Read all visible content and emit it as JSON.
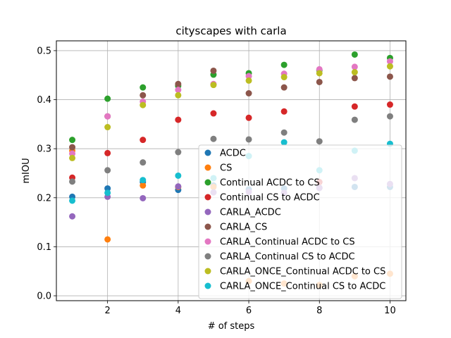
{
  "chart_data": {
    "type": "scatter",
    "title": "cityscapes with carla",
    "xlabel": "# of steps",
    "ylabel": "mIOU",
    "xlim": [
      0.55,
      10.45
    ],
    "ylim": [
      -0.01,
      0.52
    ],
    "xticks": [
      "2",
      "4",
      "6",
      "8",
      "10"
    ],
    "yticks": [
      "0.0",
      "0.1",
      "0.2",
      "0.3",
      "0.4",
      "0.5"
    ],
    "grid": true,
    "legend_position": "lower-right",
    "series": [
      {
        "name": "ACDC",
        "color": "#1f77b4",
        "x": [
          1,
          2,
          3,
          4,
          5,
          6,
          7,
          8,
          9,
          10
        ],
        "y": [
          0.202,
          0.219,
          0.232,
          0.216,
          0.225,
          0.217,
          0.219,
          0.22,
          0.222,
          0.222
        ]
      },
      {
        "name": "CS",
        "color": "#ff7f0e",
        "x": [
          1,
          2,
          3,
          4,
          5,
          6,
          7,
          8,
          9,
          10
        ],
        "y": [
          0.296,
          0.115,
          0.225,
          0.222,
          0.222,
          0.03,
          0.025,
          0.022,
          0.04,
          0.045
        ]
      },
      {
        "name": "Continual ACDC to CS",
        "color": "#2ca02c",
        "x": [
          1,
          2,
          3,
          4,
          5,
          6,
          7,
          8,
          9,
          10
        ],
        "y": [
          0.318,
          0.402,
          0.425,
          0.428,
          0.451,
          0.454,
          0.471,
          0.46,
          0.492,
          0.485
        ]
      },
      {
        "name": "Continual CS to ACDC",
        "color": "#d62728",
        "x": [
          1,
          2,
          3,
          4,
          5,
          6,
          7,
          8,
          9,
          10
        ],
        "y": [
          0.241,
          0.291,
          0.318,
          0.359,
          0.372,
          0.363,
          0.376,
          0.232,
          0.386,
          0.39
        ]
      },
      {
        "name": "CARLA_ACDC",
        "color": "#9467bd",
        "x": [
          1,
          2,
          3,
          4,
          5,
          6,
          7,
          8,
          9,
          10
        ],
        "y": [
          0.162,
          0.202,
          0.199,
          0.223,
          0.211,
          0.212,
          0.21,
          0.22,
          0.24,
          0.228
        ]
      },
      {
        "name": "CARLA_CS",
        "color": "#8c564b",
        "x": [
          1,
          2,
          3,
          4,
          5,
          6,
          7,
          8,
          9,
          10
        ],
        "y": [
          0.303,
          0.366,
          0.409,
          0.432,
          0.459,
          0.413,
          0.425,
          0.436,
          0.444,
          0.447
        ]
      },
      {
        "name": "CARLA_Continual ACDC to CS",
        "color": "#e377c2",
        "x": [
          1,
          2,
          3,
          4,
          5,
          6,
          7,
          8,
          9,
          10
        ],
        "y": [
          0.29,
          0.366,
          0.396,
          0.42,
          0.432,
          0.448,
          0.453,
          0.462,
          0.467,
          0.478
        ]
      },
      {
        "name": "CARLA_Continual CS to ACDC",
        "color": "#7f7f7f",
        "x": [
          1,
          2,
          3,
          4,
          5,
          6,
          7,
          8,
          9,
          10
        ],
        "y": [
          0.233,
          0.256,
          0.272,
          0.293,
          0.32,
          0.319,
          0.333,
          0.315,
          0.359,
          0.366
        ]
      },
      {
        "name": "CARLA_ONCE_Continual ACDC to CS",
        "color": "#bcbd22",
        "x": [
          1,
          2,
          3,
          4,
          5,
          6,
          7,
          8,
          9,
          10
        ],
        "y": [
          0.281,
          0.344,
          0.389,
          0.409,
          0.43,
          0.439,
          0.446,
          0.454,
          0.456,
          0.468
        ]
      },
      {
        "name": "CARLA_ONCE_Continual CS to ACDC",
        "color": "#17becf",
        "x": [
          1,
          2,
          3,
          4,
          5,
          6,
          7,
          8,
          9,
          10
        ],
        "y": [
          0.194,
          0.21,
          0.236,
          0.245,
          0.24,
          0.285,
          0.313,
          0.256,
          0.296,
          0.31
        ]
      }
    ]
  }
}
